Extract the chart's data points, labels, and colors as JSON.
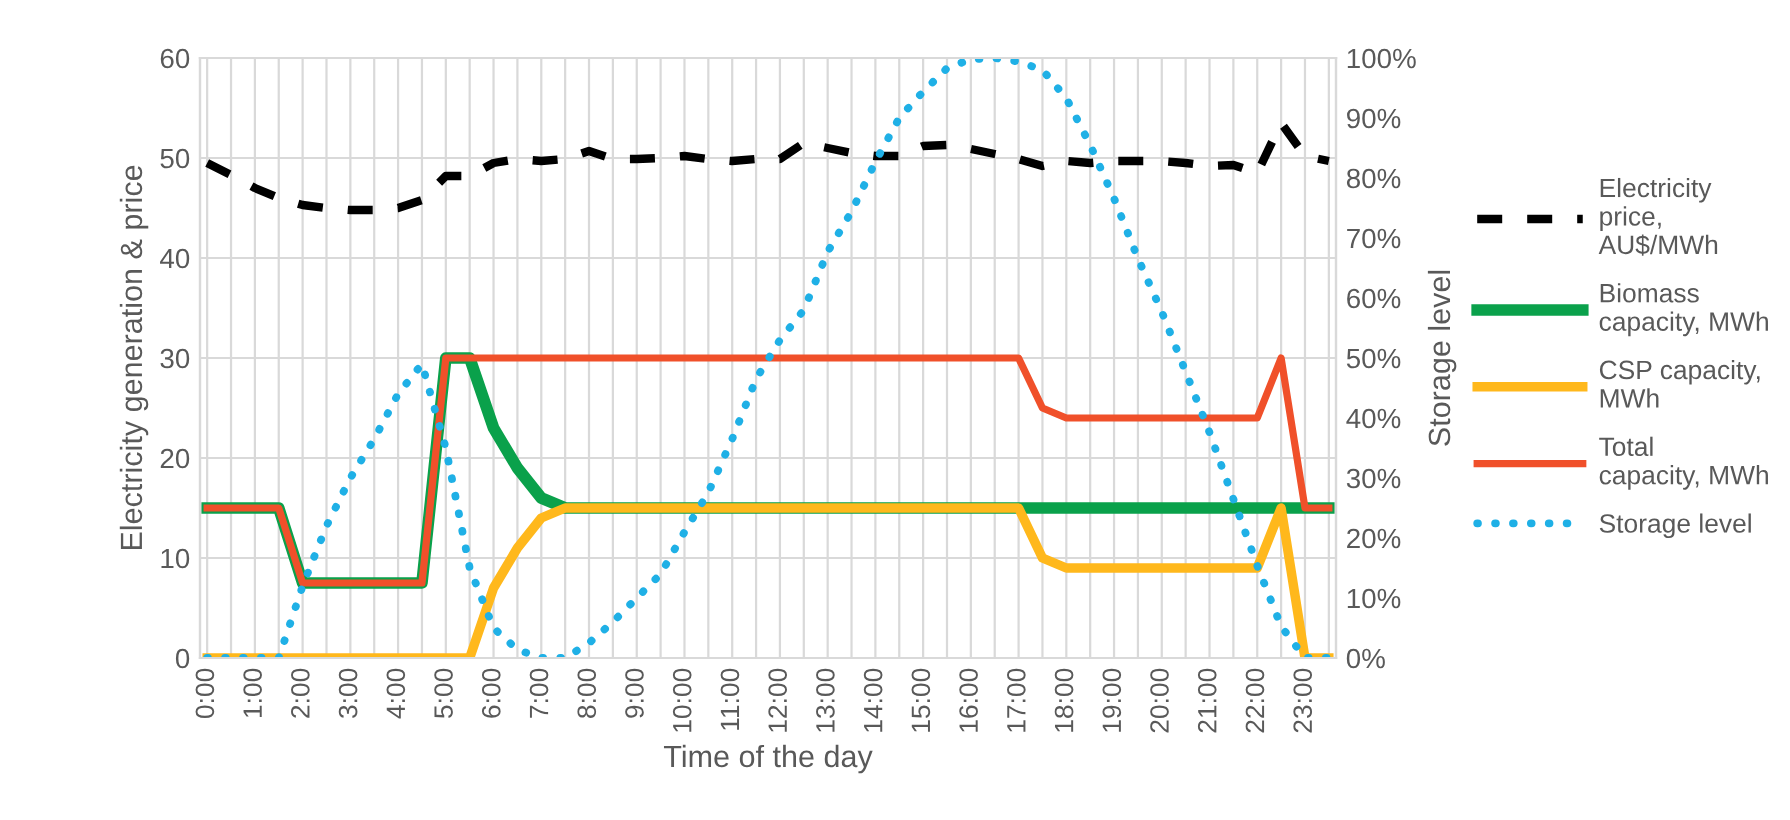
{
  "chart_data": {
    "type": "line",
    "xlabel": "Time of the day",
    "ylabel": "Electricity generation & price",
    "y2label": "Storage level",
    "categories": [
      "0:00",
      null,
      "1:00",
      null,
      "2:00",
      null,
      "3:00",
      null,
      "4:00",
      null,
      "5:00",
      null,
      "6:00",
      null,
      "7:00",
      null,
      "8:00",
      null,
      "9:00",
      null,
      "10:00",
      null,
      "11:00",
      null,
      "12:00",
      null,
      "13:00",
      null,
      "14:00",
      null,
      "15:00",
      null,
      "16:00",
      null,
      "17:00",
      null,
      "18:00",
      null,
      "19:00",
      null,
      "20:00",
      null,
      "21:00",
      null,
      "22:00",
      null,
      "23:00",
      null
    ],
    "ylim": [
      0,
      60
    ],
    "yticks": [
      0,
      10,
      20,
      30,
      40,
      50,
      60
    ],
    "y2lim": [
      0,
      100
    ],
    "y2ticks": [
      {
        "value": 0,
        "label": "0%"
      },
      {
        "value": 10,
        "label": "10%"
      },
      {
        "value": 20,
        "label": "20%"
      },
      {
        "value": 30,
        "label": "30%"
      },
      {
        "value": 40,
        "label": "40%"
      },
      {
        "value": 50,
        "label": "50%"
      },
      {
        "value": 60,
        "label": "60%"
      },
      {
        "value": 70,
        "label": "70%"
      },
      {
        "value": 80,
        "label": "80%"
      },
      {
        "value": 90,
        "label": "90%"
      },
      {
        "value": 100,
        "label": "100%"
      }
    ],
    "grid": true,
    "legend": "right",
    "marker": "none",
    "series": [
      {
        "name": "Electricity price, AU$/MWh",
        "color": "#000000",
        "line_style": "dashed",
        "values": [
          49.5,
          48.3,
          47,
          46,
          45.3,
          45,
          44.8,
          44.8,
          45,
          45.8,
          48.2,
          48.2,
          49.5,
          49.9,
          49.7,
          49.9,
          50.7,
          49.9,
          49.9,
          50,
          50.2,
          49.9,
          49.7,
          49.9,
          49.9,
          51.5,
          51,
          50.5,
          50.2,
          50.2,
          51.2,
          51.3,
          50.9,
          50.4,
          49.9,
          49.2,
          49.7,
          49.5,
          49.7,
          49.7,
          49.7,
          49.5,
          49.2,
          49.3,
          48.5,
          53.5,
          50.2,
          49.7
        ]
      },
      {
        "name": "Biomass capacity, MWh",
        "color": "#0aa14b",
        "line_style": "solid",
        "values": [
          15,
          15,
          15,
          15,
          7.5,
          7.5,
          7.5,
          7.5,
          7.5,
          7.5,
          30,
          30,
          23,
          19,
          16,
          15,
          15,
          15,
          15,
          15,
          15,
          15,
          15,
          15,
          15,
          15,
          15,
          15,
          15,
          15,
          15,
          15,
          15,
          15,
          15,
          15,
          15,
          15,
          15,
          15,
          15,
          15,
          15,
          15,
          15,
          15,
          15,
          15
        ]
      },
      {
        "name": "CSP capacity, MWh",
        "color": "#ffb81c",
        "line_style": "solid",
        "values": [
          0,
          0,
          0,
          0,
          0,
          0,
          0,
          0,
          0,
          0,
          0,
          0,
          7,
          11,
          14,
          15,
          15,
          15,
          15,
          15,
          15,
          15,
          15,
          15,
          15,
          15,
          15,
          15,
          15,
          15,
          15,
          15,
          15,
          15,
          15,
          10,
          9,
          9,
          9,
          9,
          9,
          9,
          9,
          9,
          9,
          15,
          0,
          0
        ]
      },
      {
        "name": "Total capacity, MWh",
        "color": "#f0502a",
        "line_style": "solid",
        "values": [
          15,
          15,
          15,
          15,
          7.5,
          7.5,
          7.5,
          7.5,
          7.5,
          7.5,
          30,
          30,
          30,
          30,
          30,
          30,
          30,
          30,
          30,
          30,
          30,
          30,
          30,
          30,
          30,
          30,
          30,
          30,
          30,
          30,
          30,
          30,
          30,
          30,
          30,
          25,
          24,
          24,
          24,
          24,
          24,
          24,
          24,
          24,
          24,
          30,
          15,
          15
        ]
      },
      {
        "name": "Storage level",
        "color": "#1fb0e6",
        "line_style": "dotted",
        "axis": "y2",
        "values": [
          0,
          0,
          0,
          0,
          12,
          22,
          30,
          36.5,
          44,
          49,
          35,
          15,
          5,
          1.4,
          0,
          0,
          2.5,
          6,
          10,
          14,
          21,
          27.6,
          36.5,
          46.5,
          53,
          58,
          67.7,
          74.4,
          82.7,
          90,
          94.4,
          98.3,
          99.8,
          100,
          99.4,
          98,
          93.3,
          85.5,
          76.6,
          66.6,
          57.7,
          47.7,
          37.6,
          26.5,
          15.4,
          5.3,
          0,
          0
        ]
      }
    ]
  }
}
